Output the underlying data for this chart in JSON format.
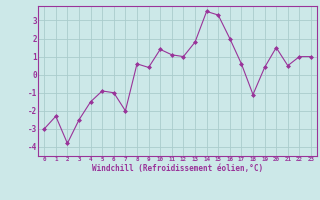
{
  "x": [
    0,
    1,
    2,
    3,
    4,
    5,
    6,
    7,
    8,
    9,
    10,
    11,
    12,
    13,
    14,
    15,
    16,
    17,
    18,
    19,
    20,
    21,
    22,
    23
  ],
  "y": [
    -3.0,
    -2.3,
    -3.8,
    -2.5,
    -1.5,
    -0.9,
    -1.0,
    -2.0,
    0.6,
    0.4,
    1.4,
    1.1,
    1.0,
    1.8,
    3.5,
    3.3,
    2.0,
    0.6,
    -1.1,
    0.4,
    1.5,
    0.5,
    1.0,
    1.0
  ],
  "line_color": "#993399",
  "marker_color": "#993399",
  "bg_color": "#cce8e8",
  "grid_color": "#aacccc",
  "xlabel": "Windchill (Refroidissement éolien,°C)",
  "ylim": [
    -4.5,
    3.8
  ],
  "xlim": [
    -0.5,
    23.5
  ],
  "yticks": [
    -4,
    -3,
    -2,
    -1,
    0,
    1,
    2,
    3
  ],
  "xticks": [
    0,
    1,
    2,
    3,
    4,
    5,
    6,
    7,
    8,
    9,
    10,
    11,
    12,
    13,
    14,
    15,
    16,
    17,
    18,
    19,
    20,
    21,
    22,
    23
  ],
  "tick_color": "#993399",
  "spine_color": "#993399",
  "xlabel_color": "#993399"
}
